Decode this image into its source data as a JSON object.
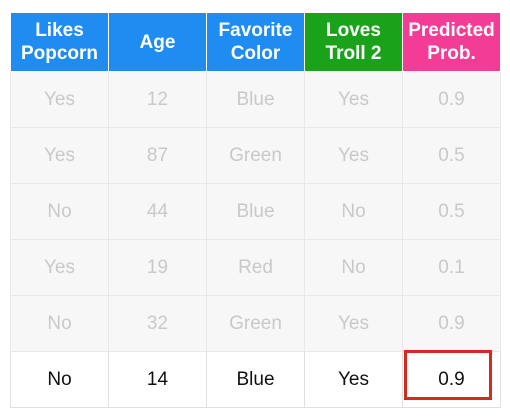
{
  "headers": [
    {
      "line1": "Likes",
      "line2": "Popcorn",
      "color": "#1e8cf0"
    },
    {
      "line1": "Age",
      "line2": "",
      "color": "#1e8cf0"
    },
    {
      "line1": "Favorite",
      "line2": "Color",
      "color": "#1e8cf0"
    },
    {
      "line1": "Loves",
      "line2": "Troll 2",
      "color": "#1aa31a"
    },
    {
      "line1": "Predicted",
      "line2": "Prob.",
      "color": "#f23c96"
    }
  ],
  "rows": [
    {
      "likes_popcorn": "Yes",
      "age": "12",
      "favorite_color": "Blue",
      "loves_troll2": "Yes",
      "predicted_prob": "0.9"
    },
    {
      "likes_popcorn": "Yes",
      "age": "87",
      "favorite_color": "Green",
      "loves_troll2": "Yes",
      "predicted_prob": "0.5"
    },
    {
      "likes_popcorn": "No",
      "age": "44",
      "favorite_color": "Blue",
      "loves_troll2": "No",
      "predicted_prob": "0.5"
    },
    {
      "likes_popcorn": "Yes",
      "age": "19",
      "favorite_color": "Red",
      "loves_troll2": "No",
      "predicted_prob": "0.1"
    },
    {
      "likes_popcorn": "No",
      "age": "32",
      "favorite_color": "Green",
      "loves_troll2": "Yes",
      "predicted_prob": "0.9"
    },
    {
      "likes_popcorn": "No",
      "age": "14",
      "favorite_color": "Blue",
      "loves_troll2": "Yes",
      "predicted_prob": "0.9"
    }
  ],
  "highlight_color": "#d62a20"
}
